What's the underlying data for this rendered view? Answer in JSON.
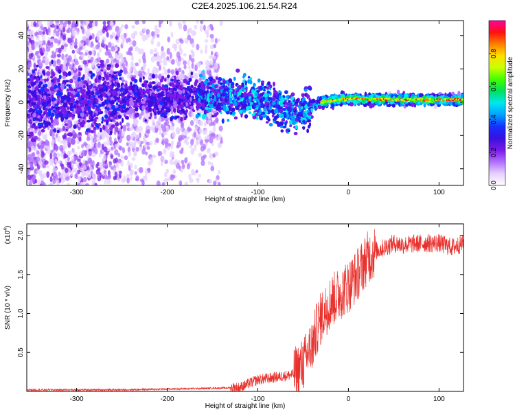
{
  "title": "C2E4.2025.106.21.54.R24",
  "chart_data": [
    {
      "type": "heatmap",
      "xlabel": "Height of straight line (km)",
      "ylabel": "Frequency (Hz)",
      "xlim": [
        -355,
        127
      ],
      "ylim": [
        -50,
        49
      ],
      "xticks": [
        -300,
        -200,
        -100,
        0,
        100
      ],
      "yticks": [
        -40,
        -20,
        0,
        20,
        40
      ],
      "colorbar": {
        "label": "Normalized spectral amplitude",
        "range": [
          0.0,
          1.0
        ],
        "ticks": [
          0.0,
          0.2,
          0.4,
          0.6,
          0.8
        ],
        "colormap": [
          "#ffffff",
          "#e6d0ff",
          "#b070ff",
          "#7a1be8",
          "#3a10e0",
          "#1530ff",
          "#00a0ff",
          "#00e8f0",
          "#00e060",
          "#40ff00",
          "#c8ff00",
          "#ffe000",
          "#ff8000",
          "#ff1010",
          "#ff00a0"
        ]
      },
      "ridge": {
        "x": [
          -355,
          -300,
          -250,
          -200,
          -160,
          -120,
          -90,
          -70,
          -50,
          -40,
          -30,
          -20,
          0,
          50,
          127
        ],
        "freq": [
          0,
          0,
          2,
          3,
          4,
          3,
          0,
          -4,
          -6,
          -2,
          0,
          1,
          2,
          1.5,
          1.5
        ]
      }
    },
    {
      "type": "line",
      "xlabel": "Height of straight line (km)",
      "ylabel": "SNR (10 * v/v)",
      "yscale_label": "(x10",
      "yscale_exp": "4",
      "xlim": [
        -355,
        127
      ],
      "ylim": [
        0,
        2.15
      ],
      "xticks": [
        -300,
        -200,
        -100,
        0,
        100
      ],
      "yticks": [
        0.5,
        1.0,
        1.5,
        2.0
      ],
      "ytick_labels": [
        "0.5",
        "1.0",
        "1.5",
        "2.0"
      ],
      "color": "#e8302c",
      "series": [
        {
          "x": [
            -355,
            -300,
            -250,
            -200,
            -150,
            -120,
            -110,
            -100,
            -80,
            -60,
            -50,
            -40,
            -35,
            -30,
            -25,
            -20,
            -10,
            0,
            10,
            20,
            30,
            40,
            50,
            60,
            80,
            100,
            115,
            127
          ],
          "values": [
            0.02,
            0.02,
            0.02,
            0.03,
            0.04,
            0.05,
            0.1,
            0.15,
            0.18,
            0.22,
            0.35,
            0.6,
            0.8,
            0.95,
            1.05,
            1.15,
            1.25,
            1.35,
            1.5,
            1.7,
            1.8,
            1.85,
            1.9,
            1.88,
            1.9,
            1.9,
            1.85,
            1.9
          ]
        }
      ]
    }
  ]
}
